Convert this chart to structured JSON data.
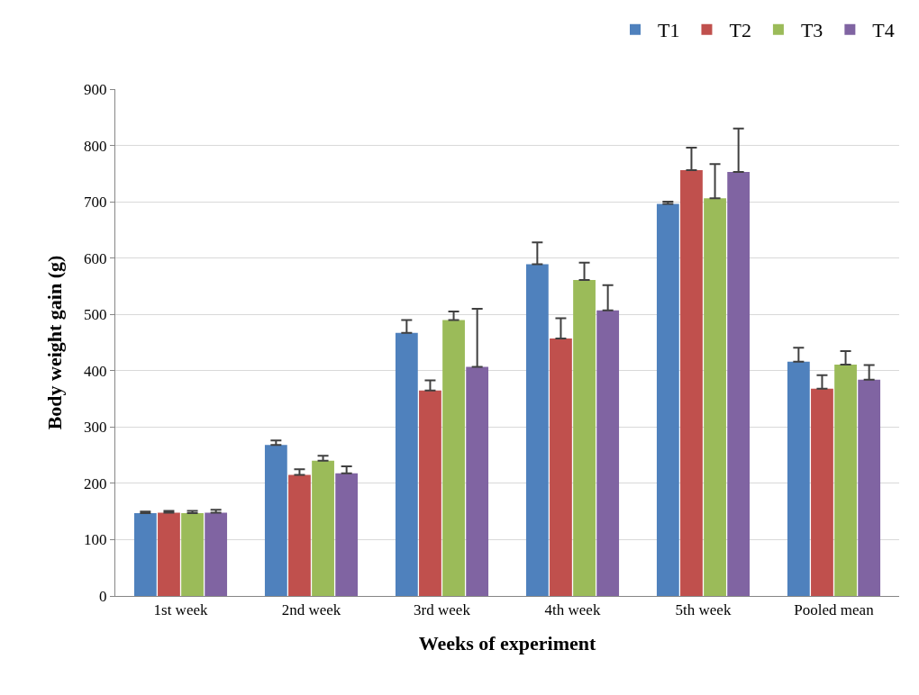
{
  "chart_data": {
    "type": "bar",
    "xlabel": "Weeks of experiment",
    "ylabel": "Body weight gain (g)",
    "categories": [
      "1st week",
      "2nd week",
      "3rd week",
      "4th week",
      "5th week",
      "Pooled mean"
    ],
    "series": [
      {
        "name": "T1",
        "color": "#4f81bd",
        "values": [
          147,
          268,
          467,
          589,
          696,
          416
        ],
        "errors": [
          [
            147,
            150
          ],
          [
            268,
            276
          ],
          [
            467,
            490
          ],
          [
            589,
            628
          ],
          [
            696,
            700
          ],
          [
            416,
            441
          ]
        ]
      },
      {
        "name": "T2",
        "color": "#c0504d",
        "values": [
          148,
          215,
          365,
          457,
          756,
          368
        ],
        "errors": [
          [
            148,
            151
          ],
          [
            215,
            225
          ],
          [
            365,
            383
          ],
          [
            457,
            493
          ],
          [
            756,
            796
          ],
          [
            368,
            392
          ]
        ]
      },
      {
        "name": "T3",
        "color": "#9bbb59",
        "values": [
          147,
          240,
          490,
          561,
          706,
          411
        ],
        "errors": [
          [
            147,
            151
          ],
          [
            240,
            249
          ],
          [
            490,
            505
          ],
          [
            561,
            592
          ],
          [
            706,
            767
          ],
          [
            411,
            435
          ]
        ]
      },
      {
        "name": "T4",
        "color": "#8064a2",
        "values": [
          148,
          218,
          407,
          507,
          753,
          384
        ],
        "errors": [
          [
            148,
            153
          ],
          [
            218,
            230
          ],
          [
            407,
            510
          ],
          [
            507,
            552
          ],
          [
            753,
            830
          ],
          [
            384,
            410
          ]
        ]
      }
    ],
    "ylim": [
      0,
      900
    ],
    "yticks": [
      0,
      100,
      200,
      300,
      400,
      500,
      600,
      700,
      800,
      900
    ],
    "grid": "y",
    "legend": "top right"
  }
}
